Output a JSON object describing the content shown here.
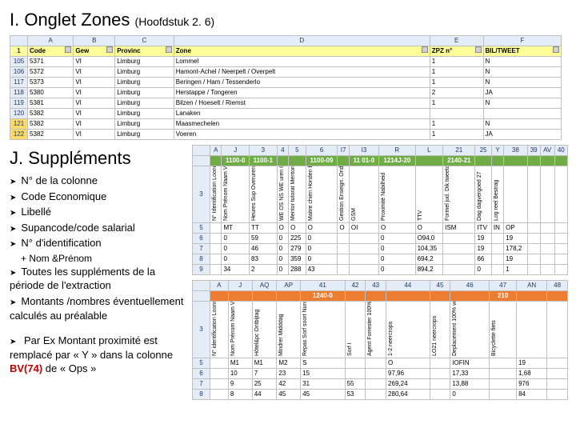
{
  "sectionI": {
    "title": "I. Onglet Zones",
    "subtitle": "(Hoofdstuk 2. 6)",
    "table": {
      "colLetters": [
        "",
        "A",
        "B",
        "C",
        "D",
        "E",
        "F"
      ],
      "headerRow": [
        "1",
        "Code",
        "Gew",
        "Provinc",
        "Zone",
        "ZPZ n°",
        "BIL/TWEET"
      ],
      "rows": [
        [
          "105",
          "5371",
          "VI",
          "Limburg",
          "Lommel",
          "1",
          "N"
        ],
        [
          "106",
          "5372",
          "VI",
          "Limburg",
          "Hamont-Achel / Neerpelt / Overpelt",
          "1",
          "N"
        ],
        [
          "117",
          "5373",
          "VI",
          "Limburg",
          "Beringen / Ham / Tessenderlo",
          "1",
          "N"
        ],
        [
          "118",
          "5380",
          "VI",
          "Limburg",
          "Herstappe / Tongeren",
          "2",
          "JA"
        ],
        [
          "119",
          "5381",
          "VI",
          "Limburg",
          "Bilzen / Hoeselt / Riemst",
          "1",
          "N"
        ],
        [
          "120",
          "5382",
          "VI",
          "Limburg",
          "Lanaken",
          "",
          ""
        ],
        [
          "121",
          "5382",
          "VI",
          "Limburg",
          "Maasmechelen",
          "1",
          "N"
        ],
        [
          "122",
          "5382",
          "VI",
          "Limburg",
          "Voeren",
          "1",
          "JA"
        ]
      ],
      "markedRows": [
        6,
        7
      ]
    }
  },
  "sectionJ": {
    "title": "J. Suppléments",
    "bullets": [
      "N° de la colonne",
      "Code Economique",
      "Libellé",
      "Supancode/code salarial",
      "N° d'identification",
      "Toutes les suppléments de la période de l'extraction",
      "Montants /nombres éventuellement calculés au préalable"
    ],
    "subLabel": "+ Nom &Prénom",
    "lastBullet": "Par Ex Montant proximité est remplacé par « Y » dans la colonne",
    "lastBulletRed": "BV(74)",
    "lastBulletTail": " de « Ops »",
    "table1": {
      "colLetters": [
        "",
        "A",
        "J",
        "3",
        "4",
        "5",
        "6",
        "I7",
        "I3",
        "R",
        "L",
        "21",
        "25",
        "Y",
        "38",
        "39",
        "AV",
        "40"
      ],
      "greenBar": [
        "",
        "",
        "1100-0",
        "1100-1",
        "",
        "",
        "1100-09",
        "",
        "11 01-0",
        "1214J-20",
        "",
        "2140-21"
      ],
      "rotLabels": [
        "N° Identification Loonnummer",
        "Nom Prénom Naam Voornaam",
        "Heures Sup Overuren",
        "WE OS NS WE uren OS NS",
        "Mentor tutorat Mentordag",
        "Maitre chien Honden baeleid.",
        "Gestion Enseign. Onderwijs knwstr.",
        "GSM",
        "Proximité Nabilheid",
        "TTV",
        "Formel jud. Dik tweetal. Ger.twetal.",
        "Dag dagvergoed 27",
        "Log reel Bestrag"
      ],
      "dataRows": [
        [
          "5",
          "",
          "MT",
          "TT",
          "O",
          "O",
          "O",
          "O",
          "OI",
          "O",
          "O",
          "ISM",
          "ITV",
          "IN",
          "OP"
        ],
        [
          "6",
          "",
          "0",
          "59",
          "0",
          "225",
          "0",
          "",
          "",
          "0",
          "O94,0",
          "",
          "19",
          "",
          "19"
        ],
        [
          "7",
          "",
          "0",
          "46",
          "0",
          "279",
          "0",
          "",
          "",
          "0",
          "104,35",
          "",
          "19",
          "",
          "178,2"
        ],
        [
          "8",
          "",
          "0",
          "83",
          "0",
          "359",
          "0",
          "",
          "",
          "0",
          "694,2",
          "",
          "66",
          "",
          "19"
        ],
        [
          "9",
          "",
          "34",
          "2",
          "0",
          "288",
          "43",
          "",
          "",
          "0",
          "894,2",
          "",
          "0",
          "",
          "1"
        ]
      ]
    },
    "table2": {
      "colLetters": [
        "",
        "A",
        "J",
        "AQ",
        "AP",
        "41",
        "42",
        "43",
        "44",
        "45",
        "46",
        "47",
        "AN",
        "48"
      ],
      "orangeBar": [
        "",
        "",
        "",
        "",
        "",
        "1240-0",
        "",
        "",
        "",
        "",
        "",
        "210"
      ],
      "rotLabels": [
        "N° identification Loonnummer",
        "Nom Prénom Naam Voornaam",
        "Hôtel&pc Ontbijtag",
        "Mindrer Midddag",
        "Repas Sorf soort Nunit",
        "Sorf I",
        "Agent Forrester 100% Boosl 100% Besulp",
        "1-2 neercrops",
        "LO21 neercrops",
        "Deplacement 100% verplatsing",
        "Bicyclette fiets"
      ],
      "dataRows": [
        [
          "5",
          "",
          "M1",
          "M1",
          "M2",
          "S",
          "",
          "",
          "O",
          "",
          "IOFIN",
          "",
          "19"
        ],
        [
          "6",
          "",
          "10",
          "7",
          "23",
          "15",
          "",
          "",
          "97,96",
          "",
          "17,33",
          "",
          "1,68"
        ],
        [
          "7",
          "",
          "9",
          "25",
          "42",
          "31",
          "55",
          "",
          "269,24",
          "",
          "13,88",
          "",
          "976"
        ],
        [
          "8",
          "",
          "8",
          "44",
          "45",
          "45",
          "53",
          "",
          "280,64",
          "",
          "0",
          "",
          "84"
        ]
      ]
    }
  },
  "colors": {
    "headerBg": "#e4ecf7",
    "yellowBg": "#ffff99",
    "markedBg": "#ffd966",
    "greenBg": "#70ad47",
    "orangeBg": "#ed7d31",
    "grid": "#c0c0c0"
  }
}
